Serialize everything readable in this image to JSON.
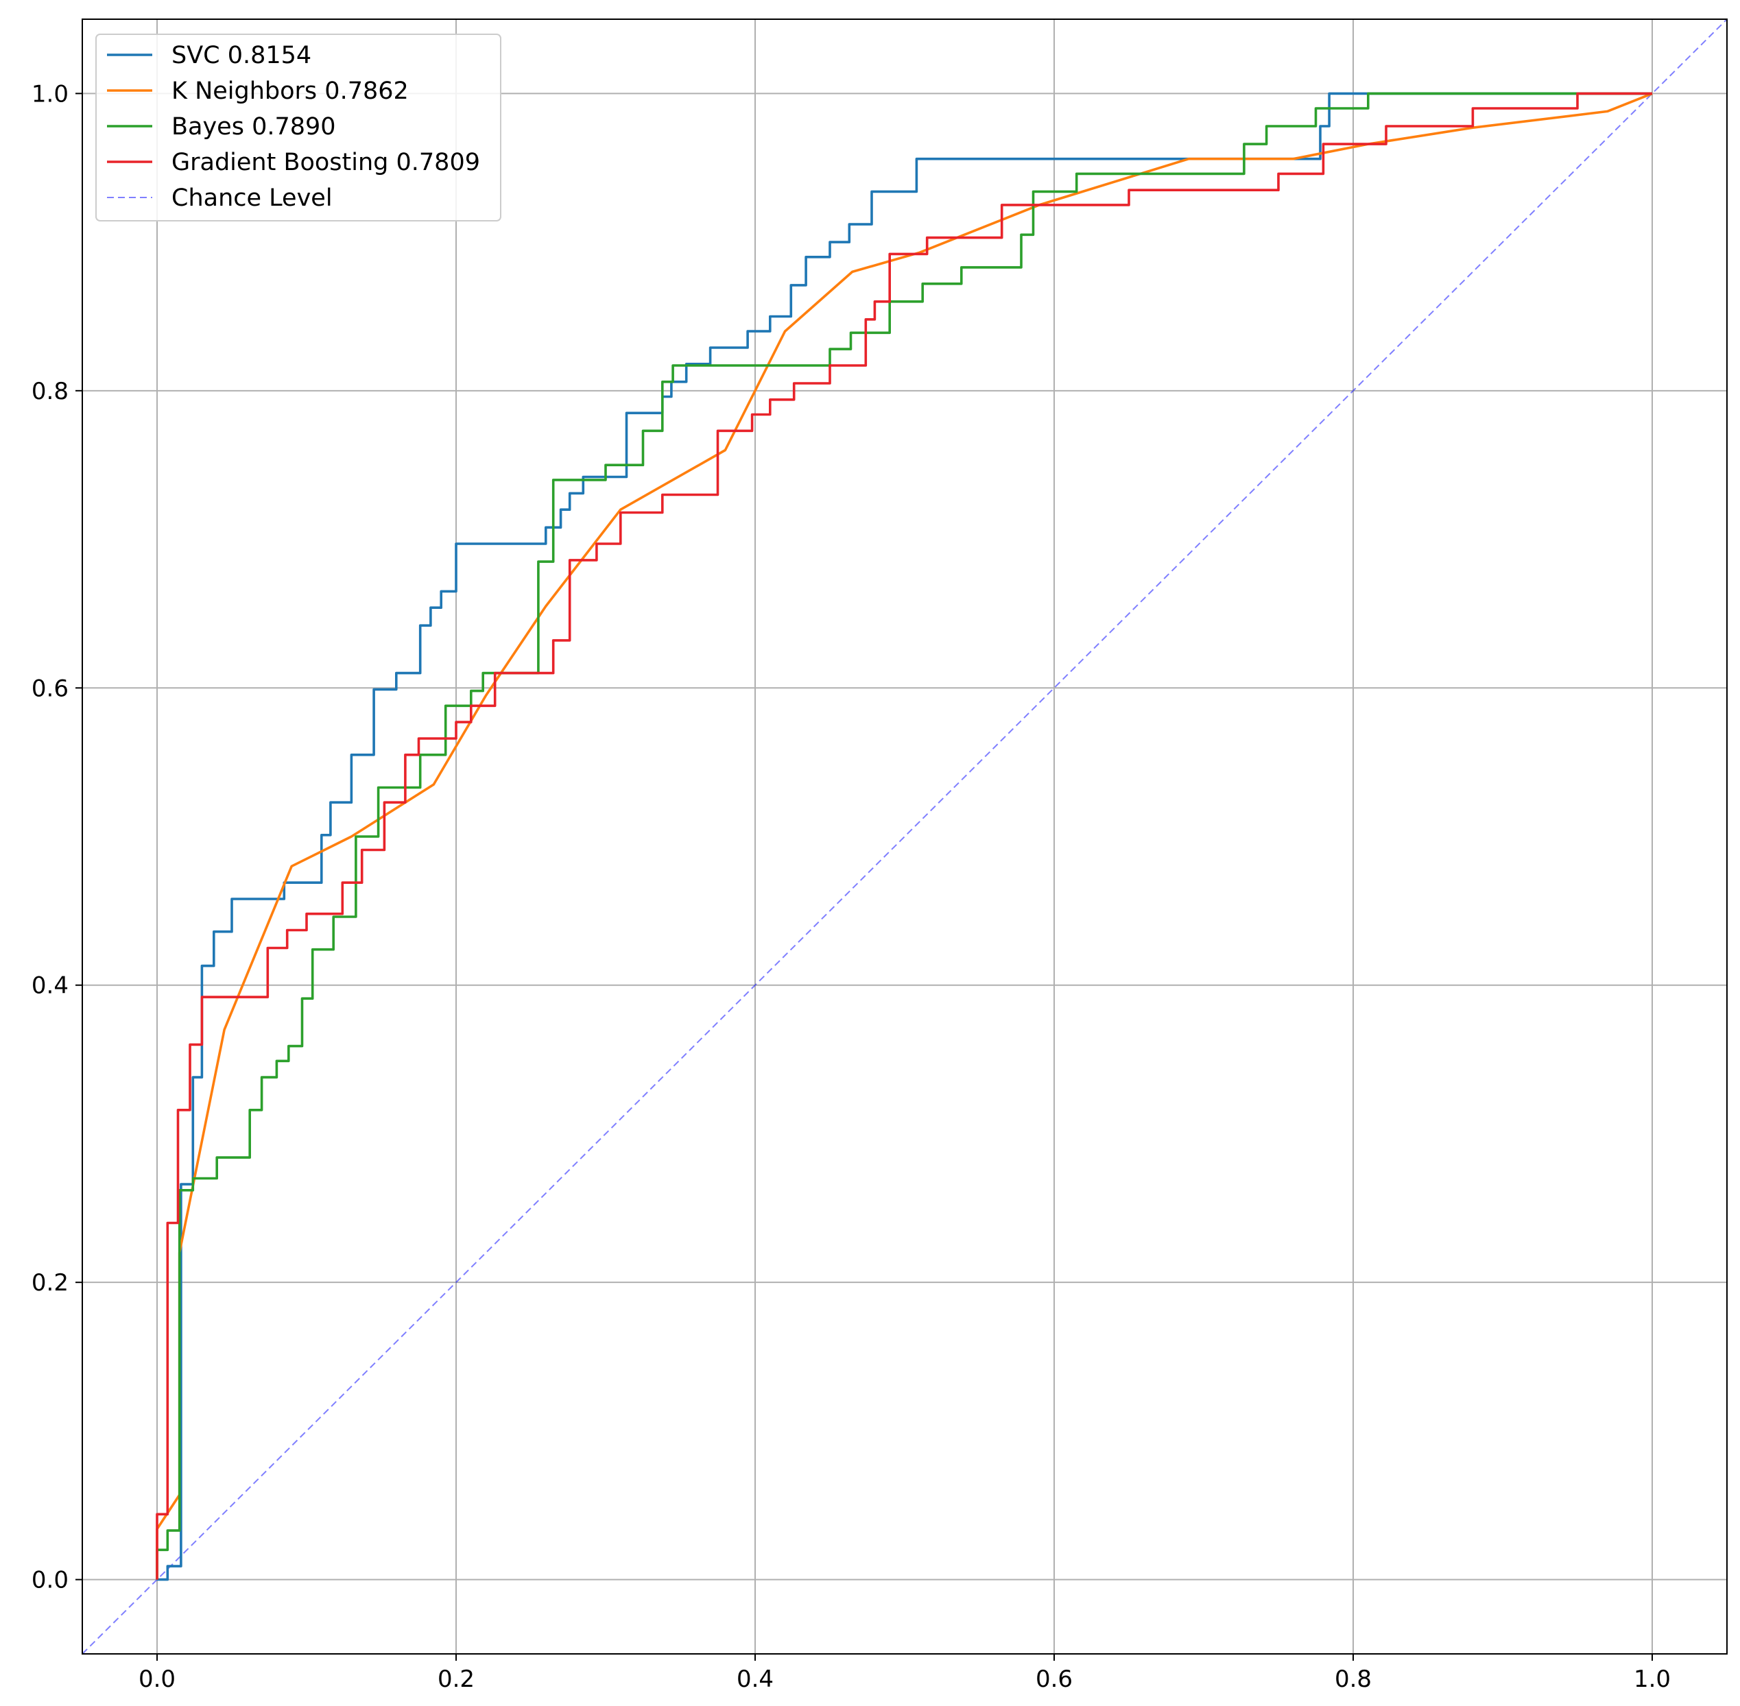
{
  "chart_data": {
    "type": "line",
    "title": "",
    "xlabel": "",
    "ylabel": "",
    "xlim": [
      -0.05,
      1.05
    ],
    "ylim": [
      -0.05,
      1.05
    ],
    "xticks": [
      {
        "value": 0.0,
        "label": "0.0"
      },
      {
        "value": 0.2,
        "label": "0.2"
      },
      {
        "value": 0.4,
        "label": "0.4"
      },
      {
        "value": 0.6,
        "label": "0.6"
      },
      {
        "value": 0.8,
        "label": "0.8"
      },
      {
        "value": 1.0,
        "label": "1.0"
      }
    ],
    "yticks": [
      {
        "value": 0.0,
        "label": "0.0"
      },
      {
        "value": 0.2,
        "label": "0.2"
      },
      {
        "value": 0.4,
        "label": "0.4"
      },
      {
        "value": 0.6,
        "label": "0.6"
      },
      {
        "value": 0.8,
        "label": "0.8"
      },
      {
        "value": 1.0,
        "label": "1.0"
      }
    ],
    "grid": true,
    "legend_position": "top-left",
    "series": [
      {
        "name": "SVC 0.8154",
        "color": "#1f77b4",
        "style": "solid",
        "x": [
          0.0,
          0.0,
          0.007,
          0.007,
          0.016,
          0.016,
          0.024,
          0.024,
          0.03,
          0.03,
          0.038,
          0.038,
          0.05,
          0.05,
          0.085,
          0.085,
          0.11,
          0.11,
          0.116,
          0.116,
          0.13,
          0.13,
          0.145,
          0.145,
          0.16,
          0.16,
          0.176,
          0.176,
          0.183,
          0.183,
          0.19,
          0.19,
          0.2,
          0.2,
          0.26,
          0.26,
          0.27,
          0.27,
          0.276,
          0.276,
          0.285,
          0.285,
          0.314,
          0.314,
          0.338,
          0.338,
          0.344,
          0.344,
          0.354,
          0.354,
          0.37,
          0.37,
          0.395,
          0.395,
          0.41,
          0.41,
          0.424,
          0.424,
          0.434,
          0.434,
          0.45,
          0.45,
          0.463,
          0.463,
          0.478,
          0.478,
          0.508,
          0.508,
          0.598,
          0.598,
          0.778,
          0.778,
          0.784,
          0.784,
          1.0
        ],
        "y": [
          0.0,
          0.0,
          0.0,
          0.009,
          0.009,
          0.266,
          0.266,
          0.338,
          0.338,
          0.413,
          0.413,
          0.436,
          0.436,
          0.458,
          0.458,
          0.469,
          0.469,
          0.501,
          0.501,
          0.523,
          0.523,
          0.555,
          0.555,
          0.599,
          0.599,
          0.61,
          0.61,
          0.642,
          0.642,
          0.654,
          0.654,
          0.665,
          0.665,
          0.697,
          0.697,
          0.708,
          0.708,
          0.72,
          0.72,
          0.731,
          0.731,
          0.742,
          0.742,
          0.785,
          0.785,
          0.796,
          0.796,
          0.806,
          0.806,
          0.818,
          0.818,
          0.829,
          0.829,
          0.84,
          0.84,
          0.85,
          0.85,
          0.871,
          0.871,
          0.89,
          0.89,
          0.9,
          0.9,
          0.912,
          0.912,
          0.934,
          0.934,
          0.956,
          0.956,
          0.956,
          0.956,
          0.978,
          0.978,
          1.0,
          1.0
        ]
      },
      {
        "name": "K Neighbors 0.7862",
        "color": "#ff7f0e",
        "style": "solid",
        "x": [
          0.0,
          0.0,
          0.015,
          0.015,
          0.045,
          0.09,
          0.13,
          0.185,
          0.22,
          0.26,
          0.31,
          0.38,
          0.42,
          0.465,
          0.51,
          0.59,
          0.69,
          0.76,
          0.81,
          0.88,
          0.97,
          1.0
        ],
        "y": [
          0.0,
          0.034,
          0.057,
          0.22,
          0.37,
          0.48,
          0.5,
          0.535,
          0.595,
          0.655,
          0.72,
          0.76,
          0.84,
          0.88,
          0.893,
          0.925,
          0.956,
          0.956,
          0.966,
          0.977,
          0.988,
          1.0
        ]
      },
      {
        "name": "Bayes 0.7890",
        "color": "#2ca02c",
        "style": "solid",
        "x": [
          0.0,
          0.0,
          0.007,
          0.007,
          0.015,
          0.015,
          0.024,
          0.024,
          0.04,
          0.04,
          0.062,
          0.062,
          0.07,
          0.07,
          0.08,
          0.08,
          0.088,
          0.088,
          0.097,
          0.097,
          0.104,
          0.104,
          0.118,
          0.118,
          0.133,
          0.133,
          0.148,
          0.148,
          0.176,
          0.176,
          0.193,
          0.193,
          0.21,
          0.21,
          0.218,
          0.218,
          0.255,
          0.255,
          0.265,
          0.265,
          0.3,
          0.3,
          0.325,
          0.325,
          0.338,
          0.338,
          0.345,
          0.345,
          0.45,
          0.45,
          0.464,
          0.464,
          0.49,
          0.49,
          0.512,
          0.512,
          0.538,
          0.538,
          0.578,
          0.578,
          0.586,
          0.586,
          0.615,
          0.615,
          0.727,
          0.727,
          0.742,
          0.742,
          0.775,
          0.775,
          0.81,
          0.81,
          0.853,
          0.853,
          1.0
        ],
        "y": [
          0.0,
          0.02,
          0.02,
          0.033,
          0.033,
          0.262,
          0.262,
          0.27,
          0.27,
          0.284,
          0.284,
          0.316,
          0.316,
          0.338,
          0.338,
          0.349,
          0.349,
          0.359,
          0.359,
          0.391,
          0.391,
          0.424,
          0.424,
          0.446,
          0.446,
          0.5,
          0.5,
          0.533,
          0.533,
          0.555,
          0.555,
          0.588,
          0.588,
          0.598,
          0.598,
          0.61,
          0.61,
          0.685,
          0.685,
          0.74,
          0.74,
          0.75,
          0.75,
          0.773,
          0.773,
          0.806,
          0.806,
          0.817,
          0.817,
          0.828,
          0.828,
          0.839,
          0.839,
          0.86,
          0.86,
          0.872,
          0.872,
          0.883,
          0.883,
          0.905,
          0.905,
          0.934,
          0.934,
          0.946,
          0.946,
          0.966,
          0.966,
          0.978,
          0.978,
          0.99,
          0.99,
          1.0,
          1.0,
          1.0,
          1.0
        ]
      },
      {
        "name": "Gradient Boosting 0.7809",
        "color": "#e8232a",
        "style": "solid",
        "x": [
          0.0,
          0.0,
          0.007,
          0.007,
          0.014,
          0.014,
          0.022,
          0.022,
          0.03,
          0.03,
          0.074,
          0.074,
          0.087,
          0.087,
          0.1,
          0.1,
          0.124,
          0.124,
          0.137,
          0.137,
          0.152,
          0.152,
          0.166,
          0.166,
          0.175,
          0.175,
          0.2,
          0.2,
          0.21,
          0.21,
          0.226,
          0.226,
          0.265,
          0.265,
          0.276,
          0.276,
          0.294,
          0.294,
          0.31,
          0.31,
          0.338,
          0.338,
          0.375,
          0.375,
          0.398,
          0.398,
          0.41,
          0.41,
          0.426,
          0.426,
          0.45,
          0.45,
          0.474,
          0.474,
          0.48,
          0.48,
          0.49,
          0.49,
          0.515,
          0.515,
          0.565,
          0.565,
          0.59,
          0.59,
          0.65,
          0.65,
          0.75,
          0.75,
          0.78,
          0.78,
          0.822,
          0.822,
          0.88,
          0.88,
          0.95,
          0.95,
          1.0
        ],
        "y": [
          0.0,
          0.044,
          0.044,
          0.24,
          0.24,
          0.316,
          0.316,
          0.36,
          0.36,
          0.392,
          0.392,
          0.425,
          0.425,
          0.437,
          0.437,
          0.448,
          0.448,
          0.469,
          0.469,
          0.491,
          0.491,
          0.523,
          0.523,
          0.555,
          0.555,
          0.566,
          0.566,
          0.577,
          0.577,
          0.588,
          0.588,
          0.61,
          0.61,
          0.632,
          0.632,
          0.686,
          0.686,
          0.697,
          0.697,
          0.718,
          0.718,
          0.73,
          0.73,
          0.773,
          0.773,
          0.784,
          0.784,
          0.794,
          0.794,
          0.805,
          0.805,
          0.817,
          0.817,
          0.848,
          0.848,
          0.86,
          0.86,
          0.892,
          0.892,
          0.903,
          0.903,
          0.925,
          0.925,
          0.925,
          0.925,
          0.935,
          0.935,
          0.946,
          0.946,
          0.966,
          0.966,
          0.978,
          0.978,
          0.99,
          0.99,
          1.0,
          1.0
        ]
      },
      {
        "name": "Chance Level",
        "color": "#0000ff",
        "style": "dashed",
        "opacity": 0.5,
        "x": [
          -0.05,
          1.05
        ],
        "y": [
          -0.05,
          1.05
        ]
      }
    ]
  }
}
